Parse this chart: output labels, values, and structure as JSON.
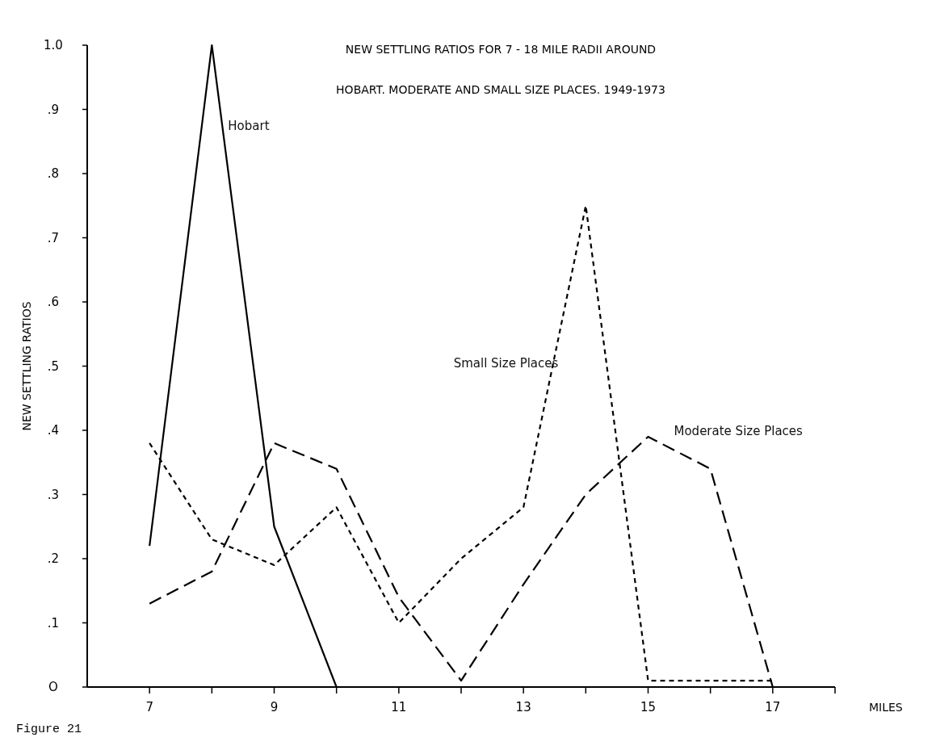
{
  "chart_data": {
    "type": "line",
    "title": "NEW SETTLING RATIOS FOR 7 - 18 MILE RADII AROUND",
    "subtitle": "HOBART. MODERATE AND SMALL SIZE PLACES. 1949-1973",
    "xlabel": "MILES",
    "ylabel": "NEW SETTLING RATIOS",
    "annotations": [
      "Figure 21"
    ],
    "x": [
      7,
      8,
      9,
      10,
      11,
      12,
      13,
      14,
      15,
      16,
      17
    ],
    "series": [
      {
        "name": "Hobart",
        "color": "#000000",
        "line_style": "solid",
        "x": [
          7,
          8,
          9,
          10
        ],
        "values": [
          0.22,
          1.0,
          0.25,
          0
        ]
      },
      {
        "name": "Small Size Places",
        "color": "#000000",
        "line_style": "dotted",
        "values": [
          0.38,
          0.23,
          0.19,
          0.28,
          0.1,
          0.2,
          0.28,
          0.75,
          0.01,
          0.01,
          0.01
        ]
      },
      {
        "name": "Moderate Size Places",
        "color": "#000000",
        "line_style": "dashed",
        "values": [
          0.13,
          0.18,
          0.38,
          0.34,
          0.14,
          0.01,
          0.16,
          0.3,
          0.39,
          0.34,
          0
        ]
      }
    ],
    "xlim": [
      6,
      18
    ],
    "xticks": [
      7,
      {
        "value": 8,
        "label": null
      },
      9,
      {
        "value": 10,
        "label": null
      },
      11,
      {
        "value": 12,
        "label": null
      },
      13,
      {
        "value": 14,
        "label": null
      },
      15,
      {
        "value": 16,
        "label": null
      },
      17,
      {
        "value": 18,
        "label": null
      }
    ],
    "ylim": [
      0,
      1.0
    ],
    "yticks": [
      {
        "value": 0,
        "label": "O"
      },
      {
        "value": 0.1,
        "label": ".1"
      },
      {
        "value": 0.2,
        "label": ".2"
      },
      {
        "value": 0.3,
        "label": ".3"
      },
      {
        "value": 0.4,
        "label": ".4"
      },
      {
        "value": 0.5,
        "label": ".5"
      },
      {
        "value": 0.6,
        "label": ".6"
      },
      {
        "value": 0.7,
        "label": ".7"
      },
      {
        "value": 0.8,
        "label": ".8"
      },
      {
        "value": 0.9,
        "label": ".9"
      },
      {
        "value": 1.0,
        "label": "1.0"
      }
    ],
    "grid": false,
    "legend": false,
    "marker": "none"
  }
}
